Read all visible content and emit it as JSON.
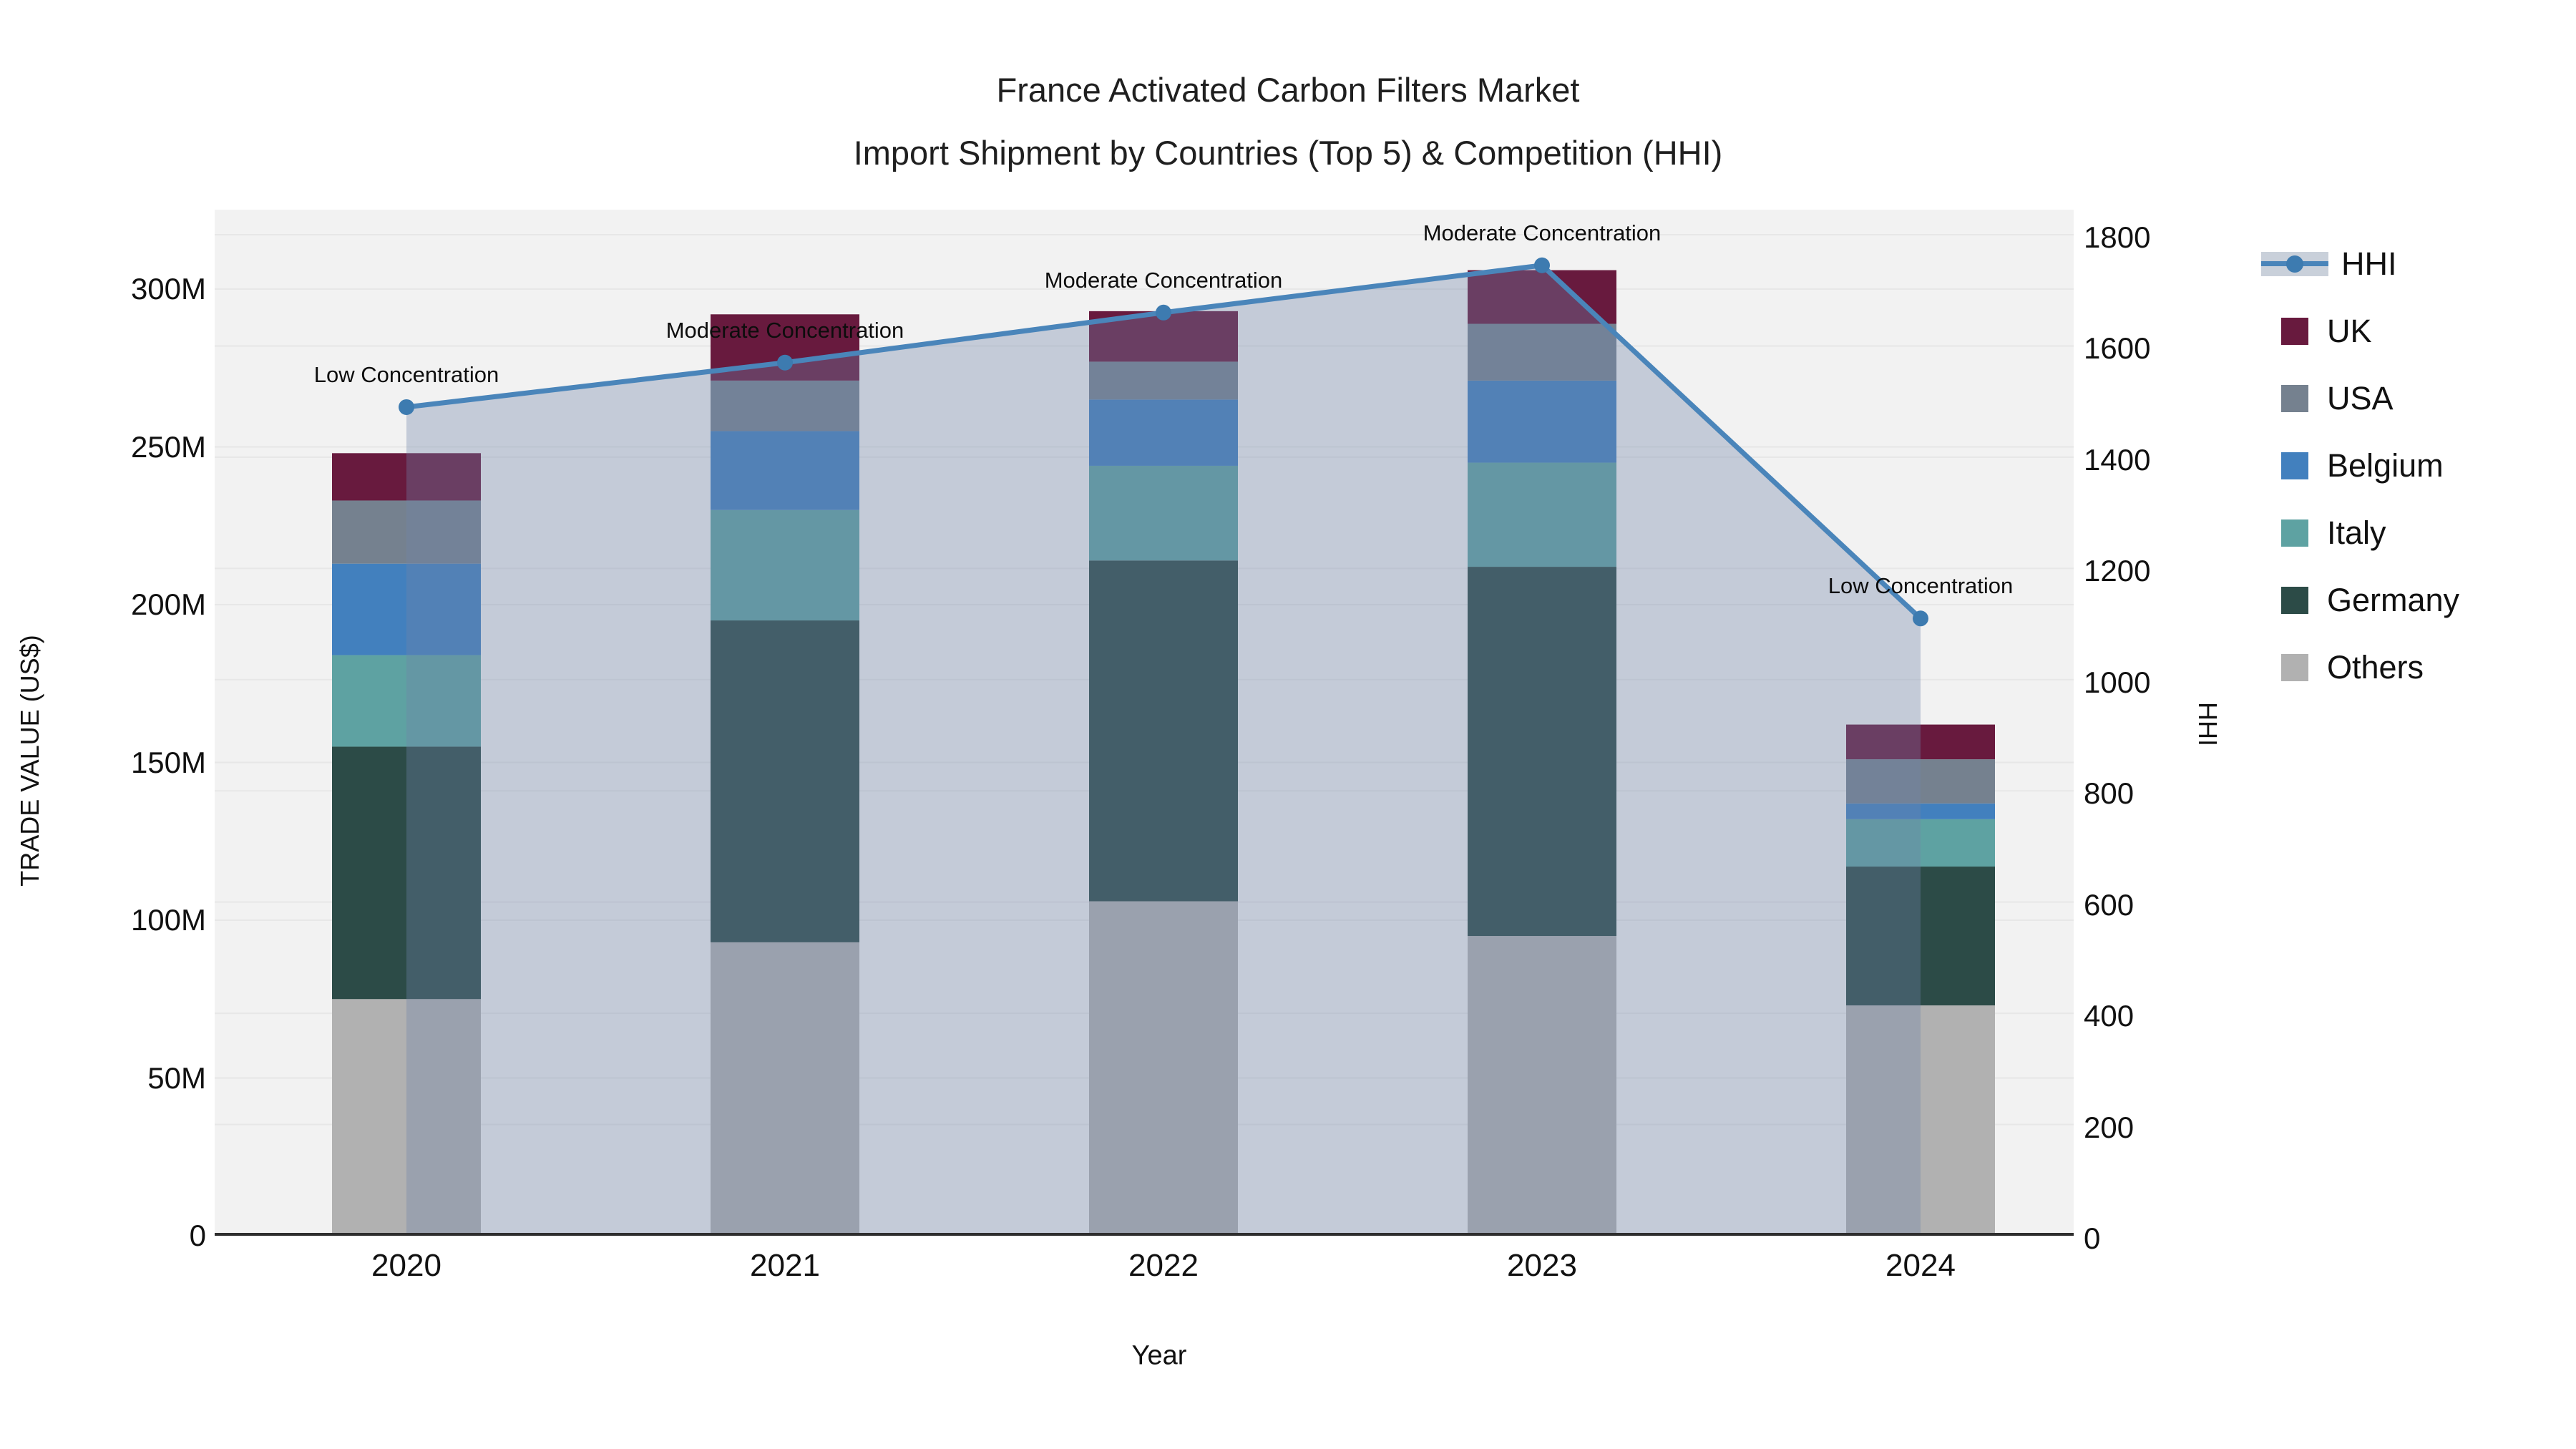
{
  "title": {
    "line1": "France Activated Carbon Filters Market",
    "line2": "Import Shipment by Countries (Top 5) & Competition (HHI)"
  },
  "axes": {
    "x_title": "Year",
    "y_left_title": "TRADE VALUE (US$)",
    "y_right_title": "HHI",
    "y_left_tick_labels": [
      "0",
      "50M",
      "100M",
      "150M",
      "200M",
      "250M",
      "300M"
    ],
    "y_left_tick_values_m": [
      0,
      50,
      100,
      150,
      200,
      250,
      300
    ],
    "y_right_tick_labels": [
      "0",
      "200",
      "400",
      "600",
      "800",
      "1000",
      "1200",
      "1400",
      "1600",
      "1800"
    ],
    "y_right_tick_values": [
      0,
      200,
      400,
      600,
      800,
      1000,
      1200,
      1400,
      1600,
      1800
    ]
  },
  "legend": [
    {
      "id": "hhi",
      "label": "HHI",
      "type": "line"
    },
    {
      "id": "uk",
      "label": "UK",
      "type": "swatch",
      "color": "#681A3E"
    },
    {
      "id": "usa",
      "label": "USA",
      "type": "swatch",
      "color": "#75818F"
    },
    {
      "id": "belgium",
      "label": "Belgium",
      "type": "swatch",
      "color": "#4280BE"
    },
    {
      "id": "italy",
      "label": "Italy",
      "type": "swatch",
      "color": "#5EA2A2"
    },
    {
      "id": "germany",
      "label": "Germany",
      "type": "swatch",
      "color": "#2C4B47"
    },
    {
      "id": "others",
      "label": "Others",
      "type": "swatch",
      "color": "#B1B1B1"
    }
  ],
  "colors": {
    "plot_background": "#F2F2F2",
    "gridline": "#E7E7E7",
    "axis_line": "#2E2E2E",
    "hhi_line": "#4A85BA",
    "hhi_marker": "#3D7BB0",
    "hhi_area_fill": "rgba(113,133,168,0.35)",
    "text": "#111111"
  },
  "chart_data": {
    "type": "combo-stacked-bar-line",
    "title": "France Activated Carbon Filters Market — Import Shipment by Countries (Top 5) & Competition (HHI)",
    "xlabel": "Year",
    "ylabel_left": "TRADE VALUE (US$)",
    "ylabel_right": "HHI",
    "categories": [
      "2020",
      "2021",
      "2022",
      "2023",
      "2024"
    ],
    "values_unit": "million US$",
    "ylim_left_m": [
      0,
      300
    ],
    "ylim_right": [
      0,
      1800
    ],
    "grid": true,
    "legend_position": "right",
    "series": [
      {
        "name": "Others",
        "color": "#B1B1B1",
        "values": [
          75,
          93,
          106,
          95,
          73
        ]
      },
      {
        "name": "Germany",
        "color": "#2C4B47",
        "values": [
          80,
          102,
          108,
          117,
          44
        ]
      },
      {
        "name": "Italy",
        "color": "#5EA2A2",
        "values": [
          29,
          35,
          30,
          33,
          15
        ]
      },
      {
        "name": "Belgium",
        "color": "#4280BE",
        "values": [
          29,
          25,
          21,
          26,
          5
        ]
      },
      {
        "name": "USA",
        "color": "#75818F",
        "values": [
          20,
          16,
          12,
          18,
          14
        ]
      },
      {
        "name": "UK",
        "color": "#681A3E",
        "values": [
          15,
          21,
          16,
          17,
          11
        ]
      }
    ],
    "bar_totals_m": [
      248,
      292,
      293,
      306,
      162
    ],
    "hhi": {
      "name": "HHI",
      "axis": "right",
      "values": [
        1490,
        1570,
        1660,
        1745,
        1110
      ]
    },
    "annotations": [
      {
        "year": "2020",
        "text": "Low Concentration"
      },
      {
        "year": "2021",
        "text": "Moderate Concentration"
      },
      {
        "year": "2022",
        "text": "Moderate Concentration"
      },
      {
        "year": "2023",
        "text": "Moderate Concentration"
      },
      {
        "year": "2024",
        "text": "Low Concentration"
      }
    ]
  }
}
